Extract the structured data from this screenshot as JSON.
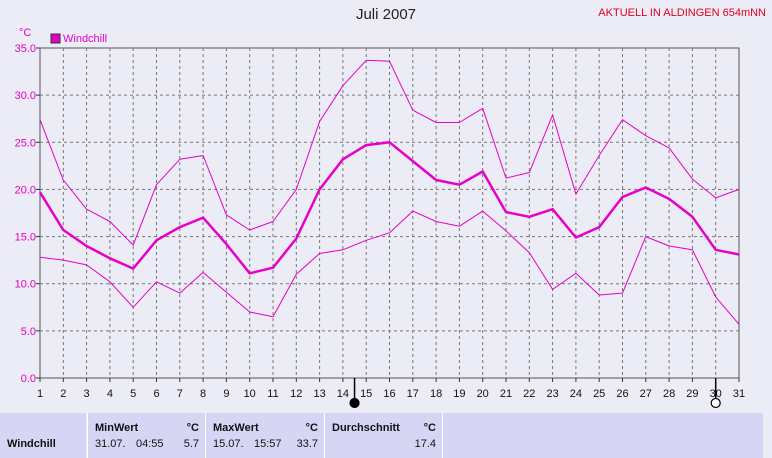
{
  "title": "Juli 2007",
  "station": "AKTUELL IN ALDINGEN 654mNN",
  "chart_data": {
    "type": "line",
    "title": "Juli 2007",
    "ylabel": "°C",
    "ylim": [
      0,
      35
    ],
    "yticks": [
      "0.0",
      "5.0",
      "10.0",
      "15.0",
      "20.0",
      "25.0",
      "30.0",
      "35.0"
    ],
    "x": [
      1,
      2,
      3,
      4,
      5,
      6,
      7,
      8,
      9,
      10,
      11,
      12,
      13,
      14,
      15,
      16,
      17,
      18,
      19,
      20,
      21,
      22,
      23,
      24,
      25,
      26,
      27,
      28,
      29,
      30,
      31
    ],
    "xticks": [
      "1",
      "2",
      "3",
      "4",
      "5",
      "6",
      "7",
      "8",
      "9",
      "10",
      "11",
      "12",
      "13",
      "14",
      "15",
      "16",
      "17",
      "18",
      "19",
      "20",
      "21",
      "22",
      "23",
      "24",
      "25",
      "26",
      "27",
      "28",
      "29",
      "30",
      "31"
    ],
    "grid": true,
    "legend": "top-left",
    "series": [
      {
        "name": "Windchill",
        "role": "max",
        "color": "#e600c8",
        "values": [
          27.4,
          21.0,
          17.9,
          16.6,
          14.1,
          20.5,
          23.2,
          23.6,
          17.3,
          15.7,
          16.6,
          20.0,
          27.2,
          31.0,
          33.7,
          33.6,
          28.4,
          27.1,
          27.1,
          28.6,
          21.2,
          21.8,
          27.9,
          19.5,
          23.6,
          27.4,
          25.7,
          24.4,
          21.1,
          19.1,
          20.0
        ]
      },
      {
        "name": "Windchill",
        "role": "avg",
        "color": "#e600c8",
        "values": [
          19.7,
          15.7,
          14.0,
          12.7,
          11.6,
          14.6,
          16.0,
          17.0,
          14.2,
          11.1,
          11.7,
          14.8,
          20.0,
          23.2,
          24.7,
          25.0,
          23.0,
          21.0,
          20.5,
          21.9,
          17.6,
          17.1,
          17.9,
          14.9,
          16.0,
          19.2,
          20.2,
          19.0,
          17.1,
          13.6,
          13.1
        ]
      },
      {
        "name": "Windchill",
        "role": "min",
        "color": "#e600c8",
        "values": [
          12.8,
          12.5,
          12.0,
          10.2,
          7.5,
          10.2,
          9.0,
          11.2,
          9.1,
          7.0,
          6.5,
          11.0,
          13.2,
          13.6,
          14.6,
          15.4,
          17.7,
          16.6,
          16.1,
          17.7,
          15.6,
          13.3,
          9.4,
          11.1,
          8.8,
          9.0,
          15.0,
          14.0,
          13.6,
          8.6,
          5.7
        ]
      }
    ],
    "markers": [
      {
        "day": 14.5,
        "type": "filled-circle"
      },
      {
        "day": 30,
        "type": "open-circle"
      }
    ]
  },
  "stats": {
    "row_label": "Windchill",
    "min": {
      "header": "MinWert",
      "unit": "°C",
      "date": "31.07.",
      "time": "04:55",
      "value": "5.7"
    },
    "max": {
      "header": "MaxWert",
      "unit": "°C",
      "date": "15.07.",
      "time": "15:57",
      "value": "33.7"
    },
    "avg": {
      "header": "Durchschnitt",
      "unit": "°C",
      "value": "17.4"
    }
  }
}
